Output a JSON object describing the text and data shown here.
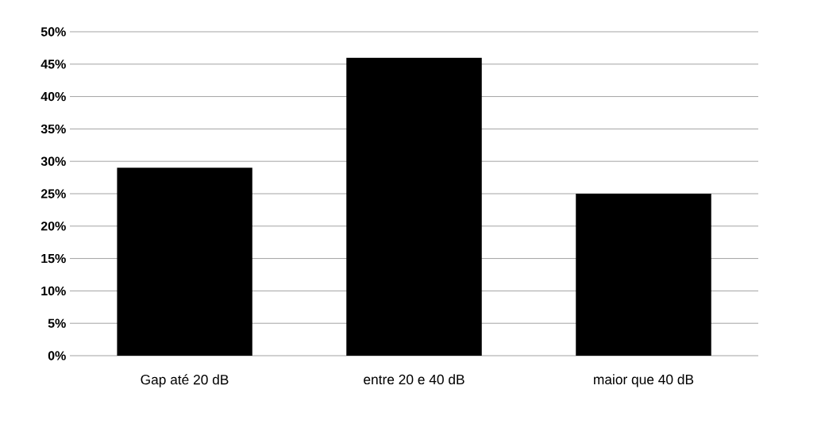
{
  "chart_data": {
    "type": "bar",
    "categories": [
      "Gap até 20 dB",
      "entre 20 e 40 dB",
      "maior que 40 dB"
    ],
    "values": [
      29,
      46,
      25
    ],
    "color": "#000000",
    "ylim": [
      0,
      50
    ],
    "yticks": [
      {
        "value": 0,
        "label": "0%"
      },
      {
        "value": 5,
        "label": "5%"
      },
      {
        "value": 10,
        "label": "10%"
      },
      {
        "value": 15,
        "label": "15%"
      },
      {
        "value": 20,
        "label": "20%"
      },
      {
        "value": 25,
        "label": "25%"
      },
      {
        "value": 30,
        "label": "30%"
      },
      {
        "value": 35,
        "label": "35%"
      },
      {
        "value": 40,
        "label": "40%"
      },
      {
        "value": 45,
        "label": "45%"
      },
      {
        "value": 50,
        "label": "50%"
      }
    ],
    "grid": "y"
  }
}
